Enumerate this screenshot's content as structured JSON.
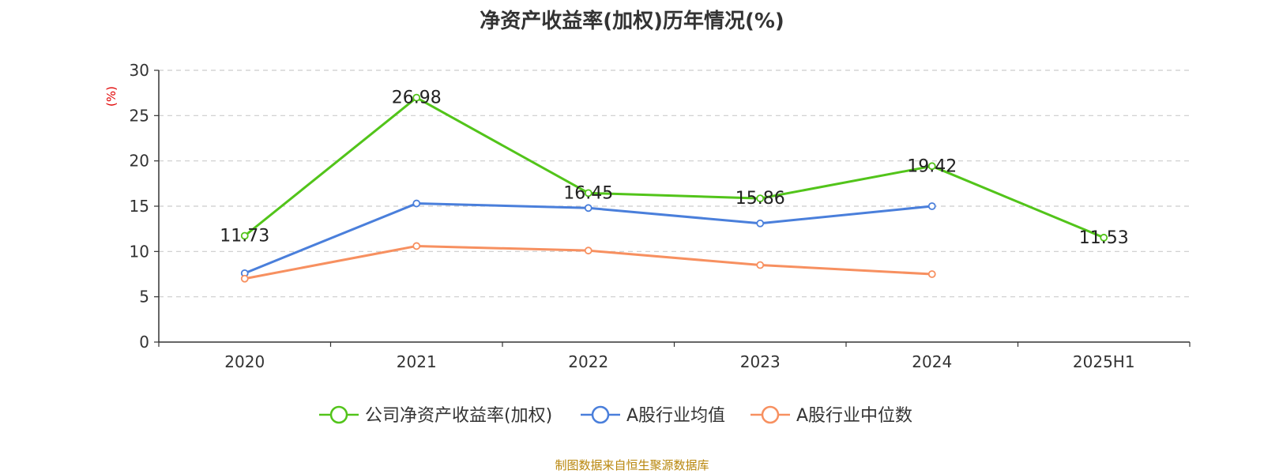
{
  "chart_data": {
    "type": "line",
    "title": "净资产收益率(加权)历年情况(%)",
    "ylabel": "(%)",
    "xlabel": "",
    "categories": [
      "2020",
      "2021",
      "2022",
      "2023",
      "2024",
      "2025H1"
    ],
    "ylim": [
      0,
      30
    ],
    "yticks": [
      0,
      5,
      10,
      15,
      20,
      25,
      30
    ],
    "grid": true,
    "legend_position": "bottom",
    "series": [
      {
        "name": "公司净资产收益率(加权)",
        "color": "#52c41a",
        "values": [
          11.73,
          26.98,
          16.45,
          15.86,
          19.42,
          11.53
        ],
        "show_labels": true
      },
      {
        "name": "A股行业均值",
        "color": "#4a7fdb",
        "values": [
          7.6,
          15.3,
          14.8,
          13.1,
          15.0,
          null
        ],
        "show_labels": false
      },
      {
        "name": "A股行业中位数",
        "color": "#f79060",
        "values": [
          7.0,
          10.6,
          10.1,
          8.5,
          7.5,
          null
        ],
        "show_labels": false
      }
    ]
  },
  "footer": {
    "source": "制图数据来自恒生聚源数据库"
  }
}
